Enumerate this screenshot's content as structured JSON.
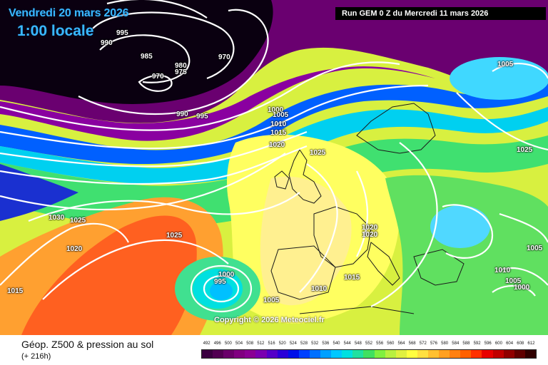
{
  "header": {
    "date": "Vendredi 20 mars 2026",
    "time": "1:00 locale",
    "run_info": "Run GEM 0 Z du Mercredi 11 mars 2026"
  },
  "copyright": "Copyright © 2026 Meteociel.fr",
  "footer": {
    "title": "Géop. Z500 & pression au sol",
    "subtitle": "(+ 216h)"
  },
  "isobar_labels": [
    "995",
    "990",
    "985",
    "980",
    "975",
    "970",
    "970",
    "990",
    "995",
    "1000",
    "1005",
    "1010",
    "1015",
    "1020",
    "1025",
    "1005",
    "1025",
    "1030",
    "1025",
    "1020",
    "1025",
    "1015",
    "1000",
    "995",
    "1005",
    "1010",
    "1015",
    "1020",
    "1020",
    "1005",
    "1010",
    "1005",
    "1000"
  ],
  "legend": {
    "values": [
      "492",
      "496",
      "500",
      "504",
      "508",
      "512",
      "516",
      "520",
      "524",
      "528",
      "532",
      "536",
      "540",
      "544",
      "548",
      "552",
      "556",
      "560",
      "564",
      "568",
      "572",
      "576",
      "580",
      "584",
      "588",
      "592",
      "596",
      "600",
      "604",
      "608",
      "612"
    ],
    "colors": [
      "#3b0040",
      "#520052",
      "#6a006a",
      "#800080",
      "#8a0094",
      "#7a00b0",
      "#5400c8",
      "#2a00d8",
      "#0010e8",
      "#0040ff",
      "#0070ff",
      "#00a0ff",
      "#00c8ff",
      "#00e0e0",
      "#20e0a0",
      "#40e060",
      "#80f040",
      "#b8f040",
      "#e0f040",
      "#ffff40",
      "#ffe040",
      "#ffc030",
      "#ffa020",
      "#ff8010",
      "#ff6000",
      "#ff3000",
      "#e80000",
      "#c00000",
      "#900000",
      "#600000",
      "#300000"
    ]
  }
}
